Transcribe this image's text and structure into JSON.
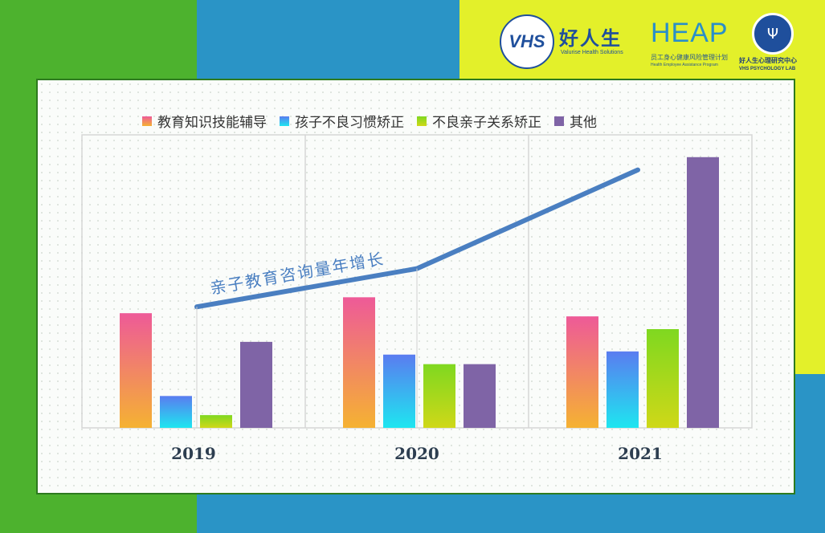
{
  "branding": {
    "vhs_badge": "VHS",
    "vhs_name": "好人生",
    "vhs_tagline": "Valurise Health Solutions",
    "heap_name": "HEAP",
    "heap_sub_cn": "员工身心健康风险管理计划",
    "heap_sub_en": "Health Employee Assistance Program",
    "lab_name_cn": "好人生心理研究中心",
    "lab_name_en": "VHS PSYCHOLOGY LAB"
  },
  "colors": {
    "background_green": "#4db22e",
    "background_blue": "#2a94c6",
    "background_yellow": "#e3f02a",
    "panel_border": "#2d7a1e",
    "trend_line": "#4a7fc1"
  },
  "chart_data": {
    "type": "bar",
    "categories": [
      "2019",
      "2020",
      "2021"
    ],
    "series": [
      {
        "name": "教育知识技能辅导",
        "values": [
          36,
          41,
          35
        ],
        "gradient": [
          "#f5b232",
          "#ee5a98"
        ]
      },
      {
        "name": "孩子不良习惯矫正",
        "values": [
          10,
          23,
          24
        ],
        "gradient": [
          "#1ee6f0",
          "#5a7cf0"
        ]
      },
      {
        "name": "不良亲子关系矫正",
        "values": [
          4,
          20,
          31
        ],
        "gradient": [
          "#cfd818",
          "#7fd820"
        ]
      },
      {
        "name": "其他",
        "values": [
          27,
          20,
          85
        ],
        "gradient": [
          "#7f64a6",
          "#7f64a6"
        ]
      }
    ],
    "trend": {
      "label": "亲子教育咨询量年增长",
      "values": [
        38,
        50,
        81
      ]
    },
    "ylim": [
      0,
      92
    ],
    "legend_position": "top",
    "grid": "vertical separators"
  }
}
